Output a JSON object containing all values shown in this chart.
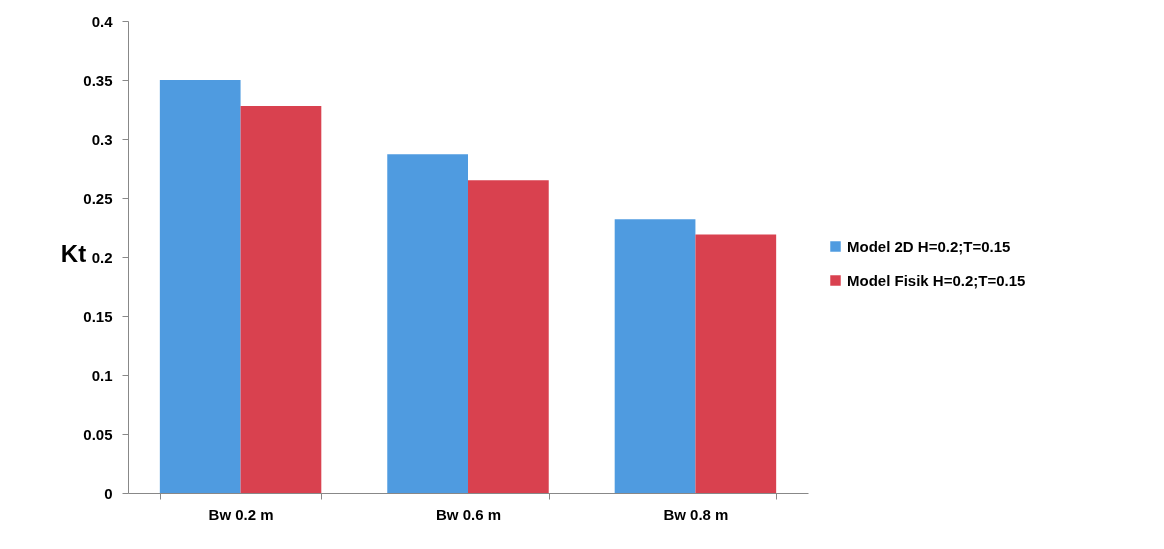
{
  "chart_data": {
    "type": "bar",
    "ylabel": "Kt",
    "categories": [
      "Bw 0.2 m",
      "Bw 0.6 m",
      "Bw 0.8 m"
    ],
    "series": [
      {
        "name": "Model 2D H=0.2;T=0.15",
        "color": "#4f9be0",
        "values": [
          0.35,
          0.287,
          0.232
        ]
      },
      {
        "name": "Model Fisik H=0.2;T=0.15",
        "color": "#d9414f",
        "values": [
          0.328,
          0.265,
          0.219
        ]
      }
    ],
    "ylim": [
      0,
      0.4
    ],
    "yticks": [
      0,
      0.05,
      0.1,
      0.15,
      0.2,
      0.25,
      0.3,
      0.35,
      0.4
    ],
    "grid": false,
    "legend": "right"
  }
}
